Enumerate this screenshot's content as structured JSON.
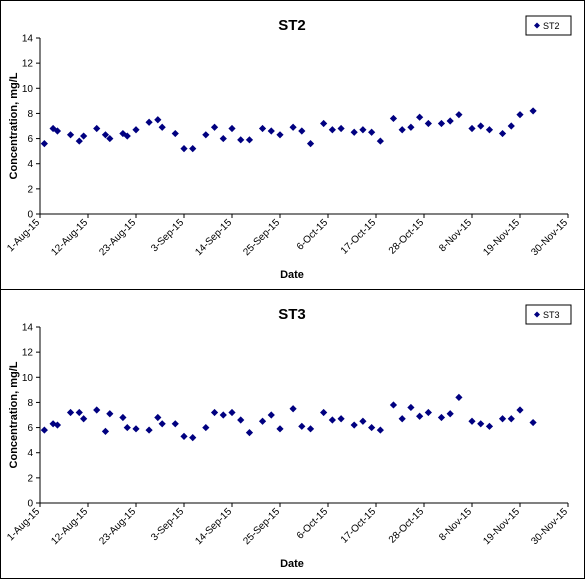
{
  "chart_data": [
    {
      "type": "scatter",
      "title": "ST2",
      "xlabel": "Date",
      "ylabel": "Concentration, mg/L",
      "ylim": [
        0,
        14
      ],
      "yticks": [
        0,
        2,
        4,
        6,
        8,
        10,
        12,
        14
      ],
      "xlim": [
        "2015-08-01",
        "2015-11-30"
      ],
      "xtick_labels": [
        "1-Aug-15",
        "12-Aug-15",
        "23-Aug-15",
        "3-Sep-15",
        "14-Sep-15",
        "25-Sep-15",
        "6-Oct-15",
        "17-Oct-15",
        "28-Oct-15",
        "8-Nov-15",
        "19-Nov-15",
        "30-Nov-15"
      ],
      "legend": "top-right",
      "grid": false,
      "marker": "diamond",
      "color": "#000080",
      "series": [
        {
          "name": "ST2",
          "points": [
            [
              "2015-08-02",
              5.6
            ],
            [
              "2015-08-04",
              6.8
            ],
            [
              "2015-08-05",
              6.6
            ],
            [
              "2015-08-08",
              6.3
            ],
            [
              "2015-08-10",
              5.8
            ],
            [
              "2015-08-11",
              6.2
            ],
            [
              "2015-08-14",
              6.8
            ],
            [
              "2015-08-16",
              6.3
            ],
            [
              "2015-08-17",
              6.0
            ],
            [
              "2015-08-20",
              6.4
            ],
            [
              "2015-08-21",
              6.2
            ],
            [
              "2015-08-23",
              6.7
            ],
            [
              "2015-08-26",
              7.3
            ],
            [
              "2015-08-28",
              7.5
            ],
            [
              "2015-08-29",
              6.9
            ],
            [
              "2015-09-01",
              6.4
            ],
            [
              "2015-09-03",
              5.2
            ],
            [
              "2015-09-05",
              5.2
            ],
            [
              "2015-09-08",
              6.3
            ],
            [
              "2015-09-10",
              6.9
            ],
            [
              "2015-09-12",
              6.0
            ],
            [
              "2015-09-14",
              6.8
            ],
            [
              "2015-09-16",
              5.9
            ],
            [
              "2015-09-18",
              5.9
            ],
            [
              "2015-09-21",
              6.8
            ],
            [
              "2015-09-23",
              6.6
            ],
            [
              "2015-09-25",
              6.3
            ],
            [
              "2015-09-28",
              6.9
            ],
            [
              "2015-09-30",
              6.6
            ],
            [
              "2015-10-02",
              5.6
            ],
            [
              "2015-10-05",
              7.2
            ],
            [
              "2015-10-07",
              6.7
            ],
            [
              "2015-10-09",
              6.8
            ],
            [
              "2015-10-12",
              6.5
            ],
            [
              "2015-10-14",
              6.7
            ],
            [
              "2015-10-16",
              6.5
            ],
            [
              "2015-10-18",
              5.8
            ],
            [
              "2015-10-21",
              7.6
            ],
            [
              "2015-10-23",
              6.7
            ],
            [
              "2015-10-25",
              6.9
            ],
            [
              "2015-10-27",
              7.7
            ],
            [
              "2015-10-29",
              7.2
            ],
            [
              "2015-11-01",
              7.2
            ],
            [
              "2015-11-03",
              7.4
            ],
            [
              "2015-11-05",
              7.9
            ],
            [
              "2015-11-08",
              6.8
            ],
            [
              "2015-11-10",
              7.0
            ],
            [
              "2015-11-12",
              6.7
            ],
            [
              "2015-11-15",
              6.4
            ],
            [
              "2015-11-17",
              7.0
            ],
            [
              "2015-11-19",
              7.9
            ],
            [
              "2015-11-22",
              8.2
            ]
          ]
        }
      ]
    },
    {
      "type": "scatter",
      "title": "ST3",
      "xlabel": "Date",
      "ylabel": "Concentration, mg/L",
      "ylim": [
        0,
        14
      ],
      "yticks": [
        0,
        2,
        4,
        6,
        8,
        10,
        12,
        14
      ],
      "xlim": [
        "2015-08-01",
        "2015-11-30"
      ],
      "xtick_labels": [
        "1-Aug-15",
        "12-Aug-15",
        "23-Aug-15",
        "3-Sep-15",
        "14-Sep-15",
        "25-Sep-15",
        "6-Oct-15",
        "17-Oct-15",
        "28-Oct-15",
        "8-Nov-15",
        "19-Nov-15",
        "30-Nov-15"
      ],
      "legend": "top-right",
      "grid": false,
      "marker": "diamond",
      "color": "#000080",
      "series": [
        {
          "name": "ST3",
          "points": [
            [
              "2015-08-02",
              5.8
            ],
            [
              "2015-08-04",
              6.3
            ],
            [
              "2015-08-05",
              6.2
            ],
            [
              "2015-08-08",
              7.2
            ],
            [
              "2015-08-10",
              7.2
            ],
            [
              "2015-08-11",
              6.7
            ],
            [
              "2015-08-14",
              7.4
            ],
            [
              "2015-08-16",
              5.7
            ],
            [
              "2015-08-17",
              7.1
            ],
            [
              "2015-08-20",
              6.8
            ],
            [
              "2015-08-21",
              6.0
            ],
            [
              "2015-08-23",
              5.9
            ],
            [
              "2015-08-26",
              5.8
            ],
            [
              "2015-08-28",
              6.8
            ],
            [
              "2015-08-29",
              6.3
            ],
            [
              "2015-09-01",
              6.3
            ],
            [
              "2015-09-03",
              5.3
            ],
            [
              "2015-09-05",
              5.2
            ],
            [
              "2015-09-08",
              6.0
            ],
            [
              "2015-09-10",
              7.2
            ],
            [
              "2015-09-12",
              7.0
            ],
            [
              "2015-09-14",
              7.2
            ],
            [
              "2015-09-16",
              6.6
            ],
            [
              "2015-09-18",
              5.6
            ],
            [
              "2015-09-21",
              6.5
            ],
            [
              "2015-09-23",
              7.0
            ],
            [
              "2015-09-25",
              5.9
            ],
            [
              "2015-09-28",
              7.5
            ],
            [
              "2015-09-30",
              6.1
            ],
            [
              "2015-10-02",
              5.9
            ],
            [
              "2015-10-05",
              7.2
            ],
            [
              "2015-10-07",
              6.6
            ],
            [
              "2015-10-09",
              6.7
            ],
            [
              "2015-10-12",
              6.2
            ],
            [
              "2015-10-14",
              6.5
            ],
            [
              "2015-10-16",
              6.0
            ],
            [
              "2015-10-18",
              5.8
            ],
            [
              "2015-10-21",
              7.8
            ],
            [
              "2015-10-23",
              6.7
            ],
            [
              "2015-10-25",
              7.6
            ],
            [
              "2015-10-27",
              6.9
            ],
            [
              "2015-10-29",
              7.2
            ],
            [
              "2015-11-01",
              6.8
            ],
            [
              "2015-11-03",
              7.1
            ],
            [
              "2015-11-05",
              8.4
            ],
            [
              "2015-11-08",
              6.5
            ],
            [
              "2015-11-10",
              6.3
            ],
            [
              "2015-11-12",
              6.1
            ],
            [
              "2015-11-15",
              6.7
            ],
            [
              "2015-11-17",
              6.7
            ],
            [
              "2015-11-19",
              7.4
            ],
            [
              "2015-11-22",
              6.4
            ]
          ]
        }
      ]
    }
  ]
}
